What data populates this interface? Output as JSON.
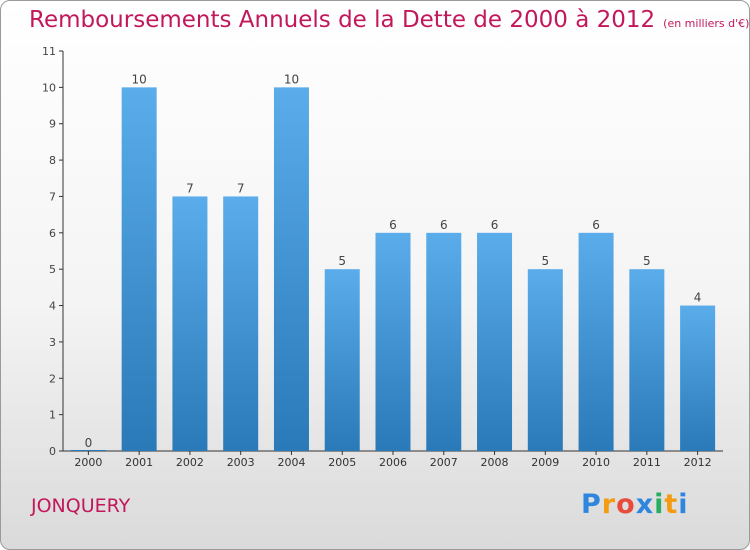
{
  "header": {
    "title": "Remboursements Annuels de la Dette de 2000 à 2012",
    "subtitle": "(en milliers d'€)"
  },
  "footer": {
    "commune": "JONQUERY",
    "logo_letters": [
      "P",
      "r",
      "o",
      "x",
      "i",
      "t",
      "i"
    ],
    "logo_colors": [
      "#2e86de",
      "#f39c12",
      "#e74c3c",
      "#2e86de",
      "#27ae60",
      "#f39c12",
      "#2e86de"
    ]
  },
  "colors": {
    "bar_top": "#5aacea",
    "bar_bottom": "#2a79b8",
    "title": "#c2185b",
    "axis": "#333333",
    "grid": "#cccccc"
  },
  "chart_data": {
    "type": "bar",
    "title": "Remboursements Annuels de la Dette de 2000 à 2012",
    "subtitle": "(en milliers d'€)",
    "xlabel": "",
    "ylabel": "",
    "categories": [
      "2000",
      "2001",
      "2002",
      "2003",
      "2004",
      "2005",
      "2006",
      "2007",
      "2008",
      "2009",
      "2010",
      "2011",
      "2012"
    ],
    "values": [
      0,
      10,
      7,
      7,
      10,
      5,
      6,
      6,
      6,
      5,
      6,
      5,
      4
    ],
    "data_labels": [
      "0",
      "10",
      "7",
      "7",
      "10",
      "5",
      "6",
      "6",
      "6",
      "5",
      "6",
      "5",
      "4"
    ],
    "ylim": [
      0,
      11
    ],
    "yticks": [
      0,
      1,
      2,
      3,
      4,
      5,
      6,
      7,
      8,
      9,
      10,
      11
    ],
    "grid": false,
    "legend": "none"
  }
}
